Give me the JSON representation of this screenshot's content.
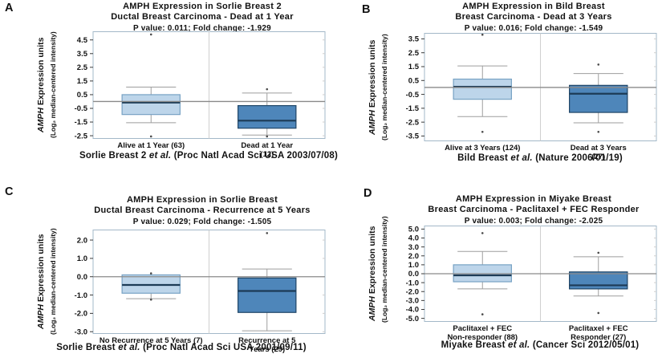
{
  "figure": {
    "background": "#ffffff"
  },
  "colors": {
    "plot_border": "#a3b8c8",
    "divider": "#cfcfcf",
    "whisker": "#9e9e9e",
    "refline": "#8a8a8a",
    "tick": "#3a3a3a",
    "box_light_fill": "#bdd5ea",
    "box_light_stroke": "#77a2c4",
    "box_dark_fill": "#4e86ba",
    "box_dark_stroke": "#1f4566",
    "median": "#1d3b56",
    "outlier": "#4a4a4a"
  },
  "panels": [
    {
      "letter": "A",
      "title_line1": "AMPH Expression in Sorlie Breast 2",
      "title_line2": "Ductal Breast Carcinoma - Dead at 1 Year",
      "stats": "P value: 0.011;  Fold change: -1.929",
      "ylabel_gene": "AMPH",
      "ylabel_units": " Expression units",
      "ylabel_sub": "(Log₂ median-centered intensity)",
      "caption_name": "Sorlie Breast 2",
      "caption_etal": "et al.",
      "caption_ref": "(Proc Natl Acad Sci USA 2003/07/08)"
    },
    {
      "letter": "B",
      "title_line1": "AMPH Expression in Bild Breast",
      "title_line2": "Breast Carcinoma - Dead at 3 Years",
      "stats": "P value: 0.016;  Fold change: -1.549",
      "ylabel_gene": "AMPH",
      "ylabel_units": " Expression units",
      "ylabel_sub": "(Log₂ median-centered intensity)",
      "caption_name": "Bild Breast",
      "caption_etal": "et al.",
      "caption_ref": "(Nature 2006/01/19)"
    },
    {
      "letter": "C",
      "title_line1": "AMPH Expression in Sorlie Breast",
      "title_line2": "Ductal Breast Carcinoma - Recurrence at 5 Years",
      "stats": "P value: 0.029;  Fold change: -1.505",
      "ylabel_gene": "AMPH",
      "ylabel_units": " Expression units",
      "ylabel_sub": "(Log₂ median-centered intensity)",
      "caption_name": "Sorlie Breast",
      "caption_etal": "et al.",
      "caption_ref": "(Proc Natl Acad Sci USA 2001/09/11)"
    },
    {
      "letter": "D",
      "title_line1": "AMPH Expression in Miyake Breast",
      "title_line2": "Breast Carcinoma - Paclitaxel + FEC Responder",
      "stats": "P value: 0.003;  Fold change: -2.025",
      "ylabel_gene": "AMPH",
      "ylabel_units": " Expression units",
      "ylabel_sub": "(Log₂ median-centered intensity)",
      "caption_name": "Miyake Breast",
      "caption_etal": "et al.",
      "caption_ref": "(Cancer Sci 2012/05/01)"
    }
  ],
  "chart_data": [
    {
      "type": "boxplot",
      "panel": "A",
      "title": "AMPH Expression in Sorlie Breast 2 — Ductal Breast Carcinoma - Dead at 1 Year",
      "p_value": 0.011,
      "fold_change": -1.929,
      "ylabel": "AMPH Expression units (Log2 median-centered intensity)",
      "yticks": [
        "4.5",
        "3.5",
        "2.5",
        "1.5",
        "0.5",
        "-0.5",
        "-1.5",
        "-2.5"
      ],
      "ylim": [
        -2.7,
        5.1
      ],
      "refline": 0,
      "grid": false,
      "source": "Sorlie Breast 2 et al. (Proc Natl Acad Sci USA 2003/07/08)",
      "groups": [
        {
          "label": "Alive at 1 Year (63)",
          "n": 63,
          "shade": "light",
          "whisker_low": -1.55,
          "q1": -0.95,
          "median": -0.08,
          "q3": 0.5,
          "whisker_high": 1.05,
          "outliers": [
            4.9,
            -2.55
          ]
        },
        {
          "label": "Dead at 1 Year (12)",
          "n": 12,
          "shade": "dark",
          "whisker_low": -2.45,
          "q1": -1.95,
          "median": -1.4,
          "q3": -0.3,
          "whisker_high": 0.62,
          "outliers": [
            0.9,
            -2.55
          ]
        }
      ]
    },
    {
      "type": "boxplot",
      "panel": "B",
      "title": "AMPH Expression in Bild Breast — Breast Carcinoma - Dead at 3 Years",
      "p_value": 0.016,
      "fold_change": -1.549,
      "ylabel": "AMPH Expression units (Log2 median-centered intensity)",
      "yticks": [
        "3.5",
        "2.5",
        "1.5",
        "0.5",
        "-0.5",
        "-1.5",
        "-2.5",
        "-3.5"
      ],
      "ylim": [
        -3.85,
        3.9
      ],
      "refline": 0,
      "grid": false,
      "source": "Bild Breast et al. (Nature 2006/01/19)",
      "groups": [
        {
          "label": "Alive at 3 Years (124)",
          "n": 124,
          "shade": "light",
          "whisker_low": -2.1,
          "q1": -0.85,
          "median": 0.05,
          "q3": 0.6,
          "whisker_high": 1.55,
          "outliers": [
            3.8,
            -3.2
          ]
        },
        {
          "label": "Dead at 3 Years (27)",
          "n": 27,
          "shade": "dark",
          "whisker_low": -2.55,
          "q1": -1.8,
          "median": -0.45,
          "q3": 0.15,
          "whisker_high": 1.0,
          "outliers": [
            1.65,
            -3.2
          ]
        }
      ]
    },
    {
      "type": "boxplot",
      "panel": "C",
      "title": "AMPH Expression in Sorlie Breast — Ductal Breast Carcinoma - Recurrence at 5 Years",
      "p_value": 0.029,
      "fold_change": -1.505,
      "ylabel": "AMPH Expression units (Log2 median-centered intensity)",
      "yticks": [
        "2.0",
        "1.0",
        "0.0",
        "-1.0",
        "-2.0",
        "-3.0"
      ],
      "ylim": [
        -3.1,
        2.55
      ],
      "refline": 0,
      "grid": false,
      "source": "Sorlie Breast et al. (Proc Natl Acad Sci USA 2001/09/11)",
      "groups": [
        {
          "label": "No Recurrence at 5 Years (7)",
          "n": 7,
          "shade": "light",
          "whisker_low": -1.2,
          "q1": -0.9,
          "median": -0.45,
          "q3": 0.1,
          "whisker_high": 0.1,
          "outliers": [
            0.18,
            -1.25
          ]
        },
        {
          "label": "Recurrence at 5 Years (29)",
          "n": 29,
          "shade": "dark",
          "whisker_low": -2.95,
          "q1": -1.95,
          "median": -0.78,
          "q3": -0.07,
          "whisker_high": 0.42,
          "outliers": [
            2.38
          ]
        }
      ]
    },
    {
      "type": "boxplot",
      "panel": "D",
      "title": "AMPH Expression in Miyake Breast — Breast Carcinoma - Paclitaxel + FEC Responder",
      "p_value": 0.003,
      "fold_change": -2.025,
      "ylabel": "AMPH Expression units (Log2 median-centered intensity)",
      "yticks": [
        "5.0",
        "4.0",
        "3.0",
        "2.0",
        "1.0",
        "0.0",
        "-1.0",
        "-2.0",
        "-3.0",
        "-4.0",
        "-5.0"
      ],
      "ylim": [
        -5.35,
        5.35
      ],
      "refline": 0,
      "grid": false,
      "source": "Miyake Breast et al. (Cancer Sci 2012/05/01)",
      "groups": [
        {
          "label": "Paclitaxel + FEC\nNon-responder (88)",
          "n": 88,
          "shade": "light",
          "whisker_low": -1.7,
          "q1": -0.9,
          "median": -0.18,
          "q3": 1.0,
          "whisker_high": 2.5,
          "outliers": [
            4.55,
            -4.55
          ]
        },
        {
          "label": "Paclitaxel + FEC\nResponder (27)",
          "n": 27,
          "shade": "dark",
          "whisker_low": -2.5,
          "q1": -1.7,
          "median": -1.3,
          "q3": 0.2,
          "whisker_high": 1.9,
          "outliers": [
            2.35,
            -4.4
          ]
        }
      ]
    }
  ]
}
